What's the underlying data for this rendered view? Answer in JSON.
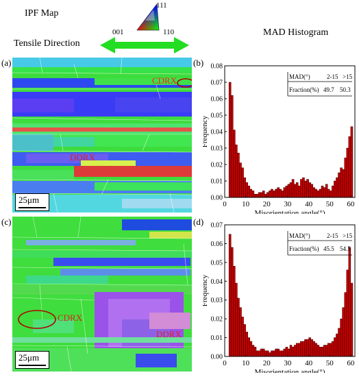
{
  "header": {
    "ipf_map_label": "IPF Map",
    "tensile_direction_label": "Tensile Direction",
    "mad_histogram_label": "MAD  Histogram",
    "triangle_labels": {
      "top": "111",
      "left": "001",
      "right": "110"
    }
  },
  "panels": {
    "a": {
      "label": "(a)",
      "annotations": [
        "CDRX",
        "DDRX"
      ],
      "scale": "25μm"
    },
    "b": {
      "label": "(b)"
    },
    "c": {
      "label": "(c)",
      "annotations": [
        "CDRX",
        "DDRX"
      ],
      "scale": "25μm"
    },
    "d": {
      "label": "(d)"
    }
  },
  "colors": {
    "bar_fill": "#c00000",
    "bar_edge": "#3a0000",
    "arrow": "#22dd22",
    "ellipse": "#b00000"
  },
  "chart_data": [
    {
      "type": "bar",
      "panel": "b",
      "xlabel": "Misorientation angle(°)",
      "ylabel": "Frequency",
      "xlim": [
        0,
        62
      ],
      "ylim": [
        0,
        0.08
      ],
      "xticks": [
        0,
        10,
        20,
        30,
        40,
        50,
        60
      ],
      "yticks": [
        "0.00",
        "0.01",
        "0.02",
        "0.03",
        "0.04",
        "0.05",
        "0.06",
        "0.07",
        "0.08"
      ],
      "bin_start": 2,
      "bin_width": 1,
      "values": [
        0.07,
        0.062,
        0.041,
        0.032,
        0.027,
        0.021,
        0.018,
        0.012,
        0.009,
        0.007,
        0.005,
        0.004,
        0.002,
        0.002,
        0.003,
        0.003,
        0.004,
        0.002,
        0.003,
        0.004,
        0.005,
        0.004,
        0.005,
        0.006,
        0.005,
        0.004,
        0.006,
        0.007,
        0.008,
        0.009,
        0.011,
        0.008,
        0.009,
        0.007,
        0.011,
        0.012,
        0.01,
        0.011,
        0.009,
        0.008,
        0.006,
        0.005,
        0.004,
        0.005,
        0.007,
        0.006,
        0.008,
        0.005,
        0.004,
        0.007,
        0.01,
        0.012,
        0.015,
        0.018,
        0.017,
        0.024,
        0.03,
        0.037,
        0.043
      ],
      "table": {
        "header": [
          "MAD(°)",
          "2-15",
          ">15"
        ],
        "row": [
          "Fraction(%)",
          "49.7",
          "50.3"
        ]
      }
    },
    {
      "type": "bar",
      "panel": "d",
      "xlabel": "Misorientation angle(°)",
      "ylabel": "Frequency",
      "xlim": [
        0,
        62
      ],
      "ylim": [
        0,
        0.07
      ],
      "xticks": [
        0,
        10,
        20,
        30,
        40,
        50,
        60
      ],
      "yticks": [
        "0.00",
        "0.01",
        "0.02",
        "0.03",
        "0.04",
        "0.05",
        "0.06",
        "0.07"
      ],
      "bin_start": 2,
      "bin_width": 1,
      "values": [
        0.065,
        0.058,
        0.048,
        0.039,
        0.031,
        0.026,
        0.021,
        0.017,
        0.013,
        0.01,
        0.008,
        0.006,
        0.005,
        0.003,
        0.003,
        0.004,
        0.004,
        0.003,
        0.003,
        0.002,
        0.003,
        0.003,
        0.004,
        0.004,
        0.003,
        0.003,
        0.004,
        0.005,
        0.004,
        0.006,
        0.005,
        0.006,
        0.007,
        0.007,
        0.008,
        0.008,
        0.009,
        0.009,
        0.01,
        0.009,
        0.008,
        0.007,
        0.006,
        0.005,
        0.005,
        0.006,
        0.006,
        0.007,
        0.007,
        0.008,
        0.01,
        0.012,
        0.015,
        0.02,
        0.026,
        0.034,
        0.046,
        0.058,
        0.039
      ],
      "table": {
        "header": [
          "MAD(°)",
          "2-15",
          ">15"
        ],
        "row": [
          "Fraction(%)",
          "45.5",
          "54.5"
        ]
      }
    }
  ]
}
